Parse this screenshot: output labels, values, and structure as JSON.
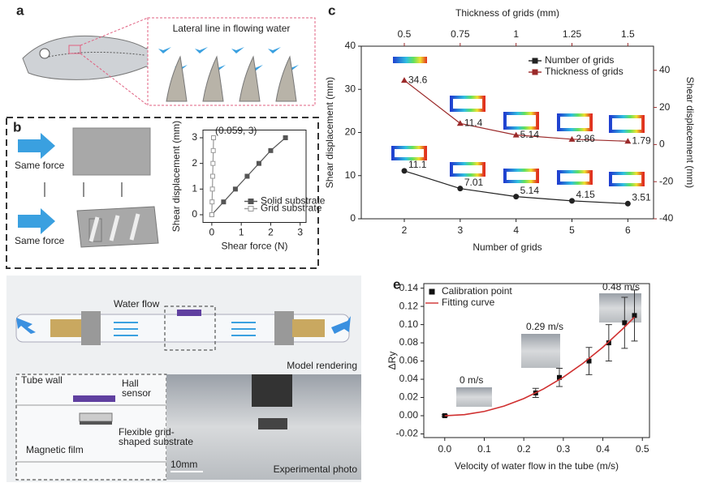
{
  "panel_labels": [
    "a",
    "b",
    "c",
    "d",
    "e"
  ],
  "panel_a": {
    "caption": "Lateral line in flowing water"
  },
  "panel_b": {
    "force_labels": [
      "Same force",
      "Same force"
    ]
  },
  "panel_d": {
    "water_flow": "Water flow",
    "model": "Model rendering",
    "tube_wall": "Tube wall",
    "hall": [
      "Hall",
      "sensor"
    ],
    "substrate": [
      "Flexible grid-",
      "shaped substrate"
    ],
    "film": "Magnetic film",
    "scale": "10mm",
    "photo": "Experimental photo"
  },
  "chart_data": [
    {
      "type": "line",
      "xlabel": "Shear force (N)",
      "ylabel": "Shear displacement (mm)",
      "xlim": [
        -0.3,
        3.2
      ],
      "xticks": [
        0,
        1,
        2,
        3
      ],
      "ylim": [
        -0.3,
        3.3
      ],
      "yticks": [
        0,
        1,
        2,
        3
      ],
      "annotation": "(0.059, 3)",
      "legend": "lower right",
      "series": [
        {
          "name": "Solid substrate",
          "color": "#555555",
          "marker": "square",
          "x": [
            0,
            0.4,
            0.8,
            1.2,
            1.6,
            2.0,
            2.5
          ],
          "values": [
            0,
            0.5,
            1,
            1.5,
            2,
            2.5,
            3
          ]
        },
        {
          "name": "Grid substrate",
          "color": "#999999",
          "marker": "open-square",
          "x": [
            0,
            0.01,
            0.02,
            0.03,
            0.04,
            0.05,
            0.059
          ],
          "values": [
            0,
            0.5,
            1,
            1.5,
            2,
            2.5,
            3
          ]
        }
      ]
    },
    {
      "type": "line",
      "xlabel": "Number of grids",
      "x2label": "Thickness of grids (mm)",
      "ylabel": "Shear displacement (mm)",
      "y2label": "Shear displacement (mm)",
      "xlim": [
        1.23,
        6.46
      ],
      "xticks": [
        2,
        3,
        4,
        5,
        6
      ],
      "x2lim": [
        0.3075,
        1.615
      ],
      "x2ticks": [
        0.5,
        0.75,
        1,
        1.25,
        1.5
      ],
      "ylim": [
        0,
        40
      ],
      "yticks": [
        0,
        10,
        20,
        30,
        40
      ],
      "y2lim": [
        -40,
        53
      ],
      "y2ticks": [
        -40,
        -20,
        0,
        20,
        40
      ],
      "legend": "upper right",
      "data_labels": true,
      "series": [
        {
          "name": "Number of grids",
          "color": "#222222",
          "marker": "circle",
          "x": [
            2,
            3,
            4,
            5,
            6
          ],
          "values": [
            11.1,
            7.01,
            5.14,
            4.15,
            3.51
          ]
        },
        {
          "name": "Thickness of grids",
          "color": "#9b2a2a",
          "marker": "triangle",
          "axis": "y2",
          "xaxis": "x2",
          "x": [
            0.5,
            0.75,
            1,
            1.25,
            1.5
          ],
          "values": [
            34.6,
            11.4,
            5.14,
            2.86,
            1.79
          ]
        }
      ]
    },
    {
      "type": "scatter",
      "xlabel": "Velocity of water flow in the tube (m/s)",
      "ylabel": "ΔRy",
      "xlim": [
        -0.053,
        0.518
      ],
      "xticks": [
        {
          "value": 0,
          "label": "0.0"
        },
        0.1,
        0.2,
        0.3,
        0.4,
        0.5
      ],
      "ylim": [
        -0.024,
        0.145
      ],
      "yticks": [
        -0.02,
        {
          "value": 0,
          "label": "0.00"
        },
        0.02,
        0.04,
        0.06,
        0.08,
        {
          "value": 0.1,
          "label": "0.10"
        },
        0.12,
        0.14
      ],
      "legend": "upper left",
      "annotations": [
        "0 m/s",
        "0.29 m/s",
        "0.48 m/s"
      ],
      "series": [
        {
          "name": "Calibration point",
          "color": "#111111",
          "marker": "square",
          "x": [
            0,
            0.23,
            0.29,
            0.365,
            0.415,
            0.455,
            0.48
          ],
          "values": [
            0,
            0.025,
            0.042,
            0.06,
            0.08,
            0.102,
            0.11
          ],
          "errors": [
            0.001,
            0.005,
            0.01,
            0.015,
            0.02,
            0.028,
            0.028
          ]
        },
        {
          "name": "Fitting curve",
          "color": "#d03030",
          "marker": "none",
          "x": [
            0,
            0.05,
            0.1,
            0.15,
            0.2,
            0.25,
            0.3,
            0.35,
            0.4,
            0.45,
            0.48
          ],
          "values": [
            0,
            0.0012,
            0.0047,
            0.0106,
            0.0188,
            0.0294,
            0.0423,
            0.0576,
            0.0752,
            0.0952,
            0.1083
          ]
        }
      ]
    }
  ]
}
